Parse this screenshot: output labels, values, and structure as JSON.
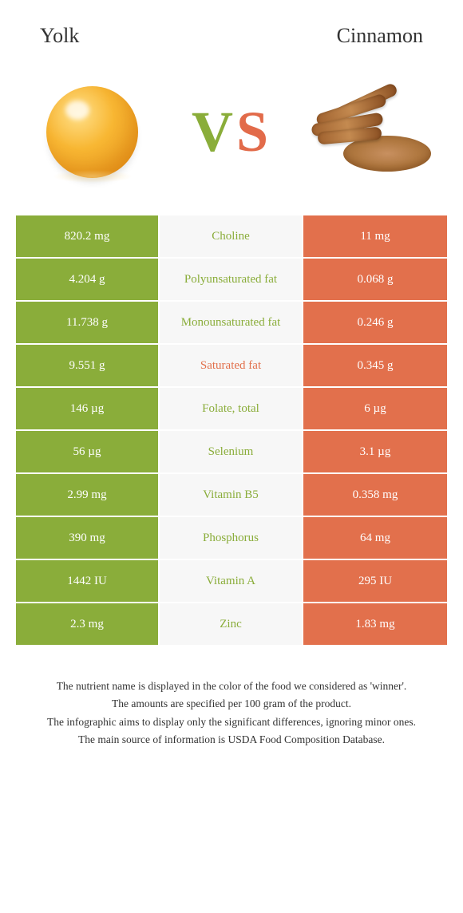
{
  "header": {
    "left_title": "Yolk",
    "right_title": "Cinnamon"
  },
  "vs": {
    "v_letter": "V",
    "s_letter": "S",
    "left_color": "#8aad3a",
    "right_color": "#e26b4a"
  },
  "colors": {
    "left_bg": "#8aad3a",
    "right_bg": "#e2704c",
    "mid_bg": "#f7f7f7",
    "mid_winner_left": "#8aad3a",
    "mid_winner_right": "#e2704c",
    "row_border": "#ffffff"
  },
  "table": {
    "rows": [
      {
        "left": "820.2 mg",
        "label": "Choline",
        "right": "11 mg",
        "winner": "left"
      },
      {
        "left": "4.204 g",
        "label": "Polyunsaturated fat",
        "right": "0.068 g",
        "winner": "left"
      },
      {
        "left": "11.738 g",
        "label": "Monounsaturated fat",
        "right": "0.246 g",
        "winner": "left"
      },
      {
        "left": "9.551 g",
        "label": "Saturated fat",
        "right": "0.345 g",
        "winner": "right"
      },
      {
        "left": "146 µg",
        "label": "Folate, total",
        "right": "6 µg",
        "winner": "left"
      },
      {
        "left": "56 µg",
        "label": "Selenium",
        "right": "3.1 µg",
        "winner": "left"
      },
      {
        "left": "2.99 mg",
        "label": "Vitamin B5",
        "right": "0.358 mg",
        "winner": "left"
      },
      {
        "left": "390 mg",
        "label": "Phosphorus",
        "right": "64 mg",
        "winner": "left"
      },
      {
        "left": "1442 IU",
        "label": "Vitamin A",
        "right": "295 IU",
        "winner": "left"
      },
      {
        "left": "2.3 mg",
        "label": "Zinc",
        "right": "1.83 mg",
        "winner": "left"
      }
    ]
  },
  "footer": {
    "line1": "The nutrient name is displayed in the color of the food we considered as 'winner'.",
    "line2": "The amounts are specified per 100 gram of the product.",
    "line3": "The infographic aims to display only the significant differences, ignoring minor ones.",
    "line4": "The main source of information is USDA Food Composition Database."
  }
}
